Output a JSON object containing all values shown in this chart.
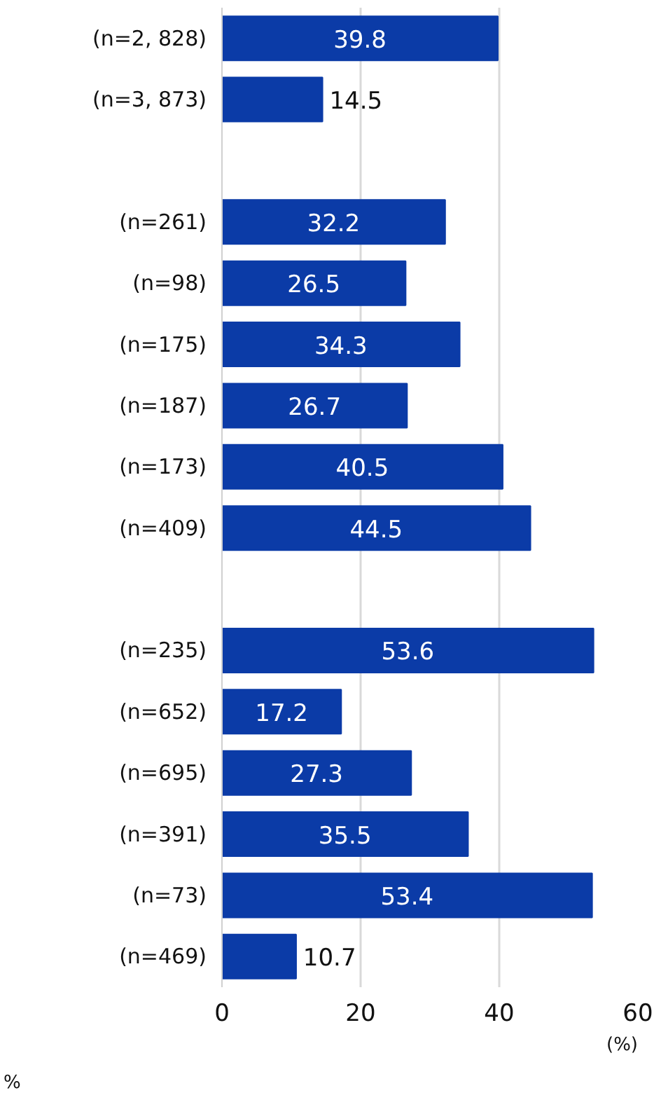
{
  "chart_data": {
    "type": "bar",
    "orientation": "horizontal",
    "categories": [
      "(n=2, 828)",
      "(n=3, 873)",
      null,
      "(n=261)",
      "(n=98)",
      "(n=175)",
      "(n=187)",
      "(n=173)",
      "(n=409)",
      null,
      "(n=235)",
      "(n=652)",
      "(n=695)",
      "(n=391)",
      "(n=73)",
      "(n=469)"
    ],
    "values": [
      39.8,
      14.5,
      null,
      32.2,
      26.5,
      34.3,
      26.7,
      40.5,
      44.5,
      null,
      53.6,
      17.2,
      27.3,
      35.5,
      53.4,
      10.7
    ],
    "color": "#0b3ba7",
    "xlim": [
      0,
      60
    ],
    "xticks": [
      0,
      20,
      40,
      60
    ],
    "xlabel": "(%)",
    "grid": "x",
    "data_labels": true,
    "annotations": [
      "%"
    ]
  }
}
